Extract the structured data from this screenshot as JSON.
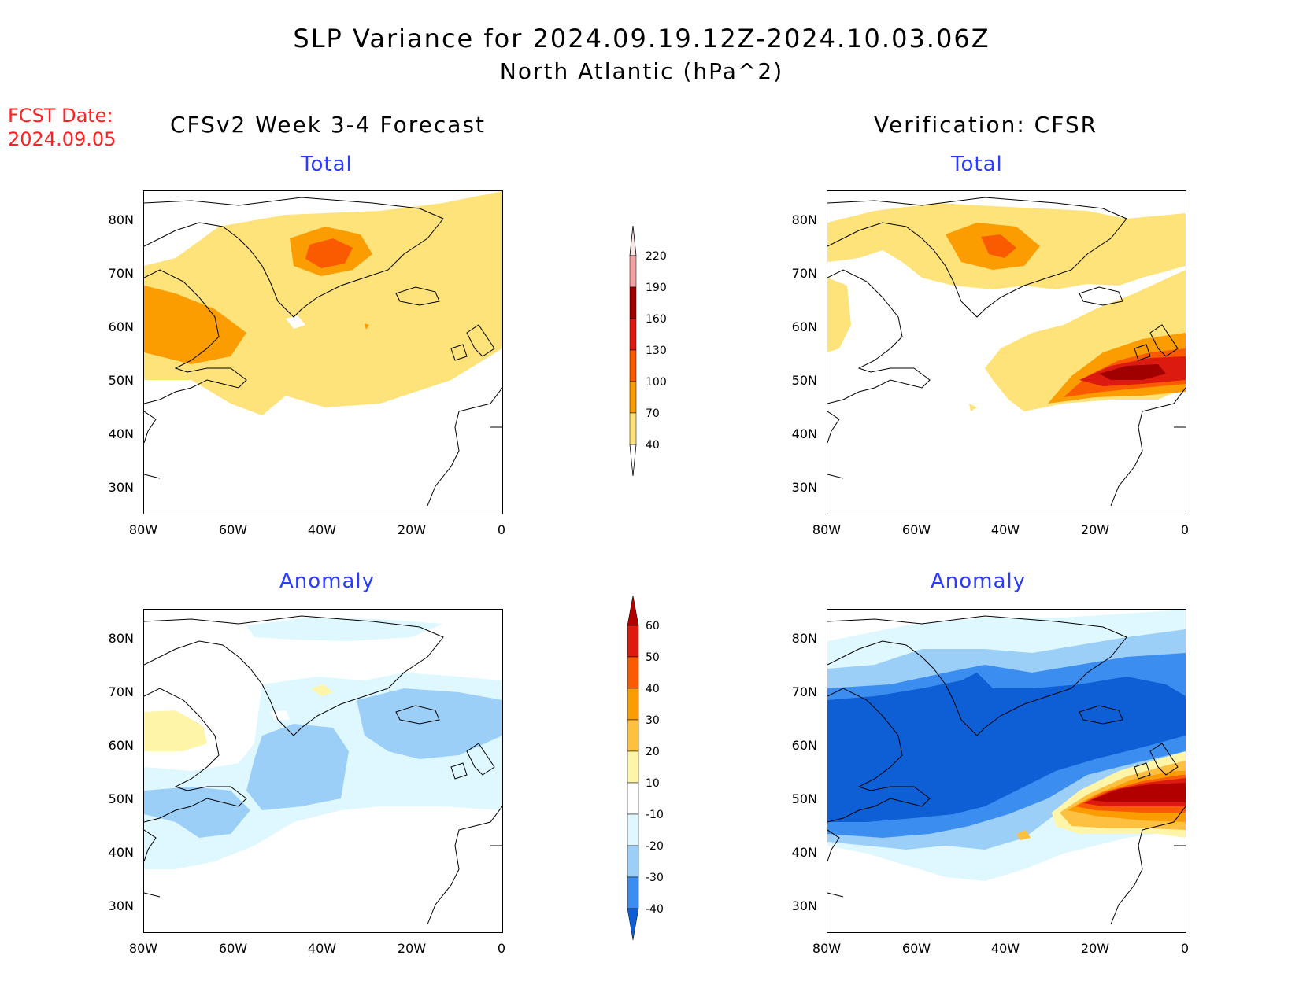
{
  "title_line1": "SLP Variance for 2024.09.19.12Z-2024.10.03.06Z",
  "title_line2": "North Atlantic (hPa^2)",
  "fcst_date_label": "FCST Date:",
  "fcst_date_value": "2024.09.05",
  "left_column_title": "CFSv2 Week 3-4 Forecast",
  "right_column_title": "Verification: CFSR",
  "panels": {
    "fcst_total": "Total",
    "verif_total": "Total",
    "fcst_anomaly": "Anomaly",
    "verif_anomaly": "Anomaly"
  },
  "lat_labels": [
    "80N",
    "70N",
    "60N",
    "50N",
    "40N",
    "30N"
  ],
  "lon_labels": [
    "80W",
    "60W",
    "40W",
    "20W",
    "0"
  ],
  "total_colorbar": {
    "levels": [
      "220",
      "190",
      "160",
      "130",
      "100",
      "70",
      "40"
    ],
    "colors": [
      "#fbe6e6",
      "#f3a0a0",
      "#a00000",
      "#dd1a10",
      "#fa5a00",
      "#fb9c00",
      "#fde37a"
    ]
  },
  "anomaly_colorbar": {
    "levels": [
      "60",
      "50",
      "40",
      "30",
      "20",
      "10",
      "-10",
      "-20",
      "-30",
      "-40"
    ],
    "colors": [
      "#b20000",
      "#dd1a10",
      "#fa5a00",
      "#fb9c00",
      "#fdc040",
      "#fff5a8",
      "#ffffff",
      "#dff8ff",
      "#9ccff8",
      "#3b8ef0",
      "#0e5fd6"
    ]
  }
}
